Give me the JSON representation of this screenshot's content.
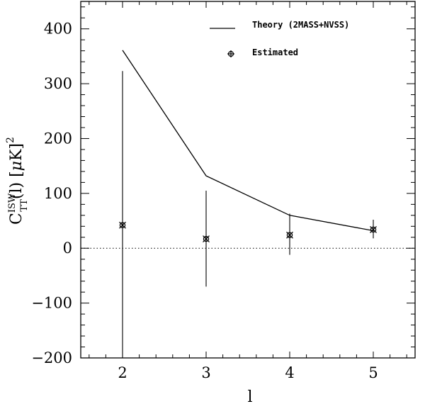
{
  "chart_data": {
    "type": "line",
    "xlabel": "l",
    "ylabel": "C_TT^ISW(l)  [μK]^2",
    "xlim": [
      1.5,
      5.5
    ],
    "ylim": [
      -200,
      450
    ],
    "x_ticks": [
      2,
      3,
      4,
      5
    ],
    "x_tick_labels": [
      "2",
      "3",
      "4",
      "5"
    ],
    "y_ticks": [
      -200,
      -100,
      0,
      100,
      200,
      300,
      400
    ],
    "y_tick_labels": [
      "−200",
      "−100",
      "0",
      "100",
      "200",
      "300",
      "400"
    ],
    "zero_line": "dotted",
    "legend_position": "top-right",
    "series": [
      {
        "name": "Theory (2MASS+NVSS)",
        "kind": "line",
        "x": [
          2,
          3,
          4,
          5
        ],
        "y": [
          361,
          132,
          60,
          32
        ]
      },
      {
        "name": "Estimated",
        "kind": "points-with-error",
        "x": [
          2,
          3,
          4,
          5
        ],
        "y": [
          42,
          17,
          24,
          34
        ],
        "err_low": [
          -210,
          -70,
          -12,
          18
        ],
        "err_high": [
          323,
          105,
          63,
          52
        ]
      }
    ]
  },
  "legend": {
    "theory_label": "Theory (2MASS+NVSS)",
    "estimated_label": "Estimated"
  }
}
